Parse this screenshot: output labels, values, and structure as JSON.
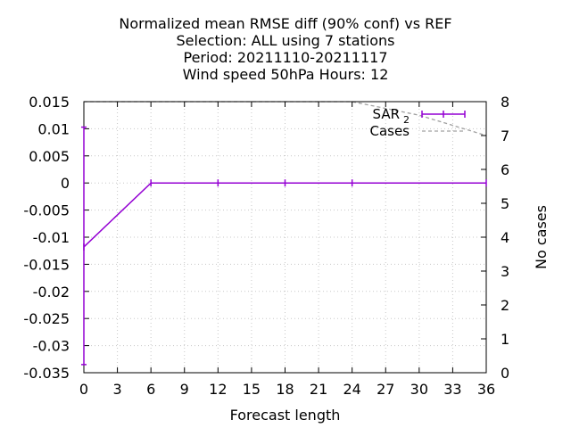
{
  "chart_data": {
    "type": "line",
    "title_lines": [
      "Normalized mean RMSE diff (90% conf) vs REF",
      "Selection: ALL using     7 stations",
      "Period: 20211110-20211117",
      "Wind speed 50hPa   Hours:  12"
    ],
    "xlabel": "Forecast length",
    "ylabel": "",
    "y2label": "No cases",
    "xlim": [
      0,
      36
    ],
    "ylim": [
      -0.035,
      0.015
    ],
    "y2lim": [
      0,
      8
    ],
    "xticks": [
      0,
      3,
      6,
      9,
      12,
      15,
      18,
      21,
      24,
      27,
      30,
      33,
      36
    ],
    "xtick_labels": [
      "0",
      "3",
      "6",
      "9",
      "12",
      "15",
      "18",
      "21",
      "24",
      "27",
      "30",
      "33",
      "36"
    ],
    "yticks": [
      0.015,
      0.01,
      0.005,
      0,
      -0.005,
      -0.01,
      -0.015,
      -0.02,
      -0.025,
      -0.03,
      -0.035
    ],
    "ytick_labels": [
      "0.015",
      "0.01",
      "0.005",
      "0",
      "-0.005",
      "-0.01",
      "-0.015",
      "-0.02",
      "-0.025",
      "-0.03",
      "-0.035"
    ],
    "y2ticks": [
      0,
      1,
      2,
      3,
      4,
      5,
      6,
      7,
      8
    ],
    "y2tick_labels": [
      "0",
      "1",
      "2",
      "3",
      "4",
      "5",
      "6",
      "7",
      "8"
    ],
    "grid": true,
    "legend_position": "top-right",
    "series": [
      {
        "name": "SAR",
        "legend_suffix": "2",
        "color": "#9400d3",
        "axis": "y",
        "style": "line-errorbars",
        "x": [
          0,
          6,
          12,
          18,
          24,
          36
        ],
        "y": [
          -0.0118,
          0,
          0,
          0,
          0,
          0
        ],
        "err_low": [
          -0.0335,
          0,
          0,
          0,
          0,
          0
        ],
        "err_high": [
          0.0103,
          0,
          0,
          0,
          0,
          0
        ]
      },
      {
        "name": "Cases",
        "color": "#a0a0a0",
        "axis": "y2",
        "style": "dashed",
        "x": [
          0,
          6,
          12,
          18,
          24,
          30,
          36
        ],
        "y": [
          8,
          8,
          8,
          8,
          8,
          7.6,
          7.0
        ]
      }
    ]
  }
}
